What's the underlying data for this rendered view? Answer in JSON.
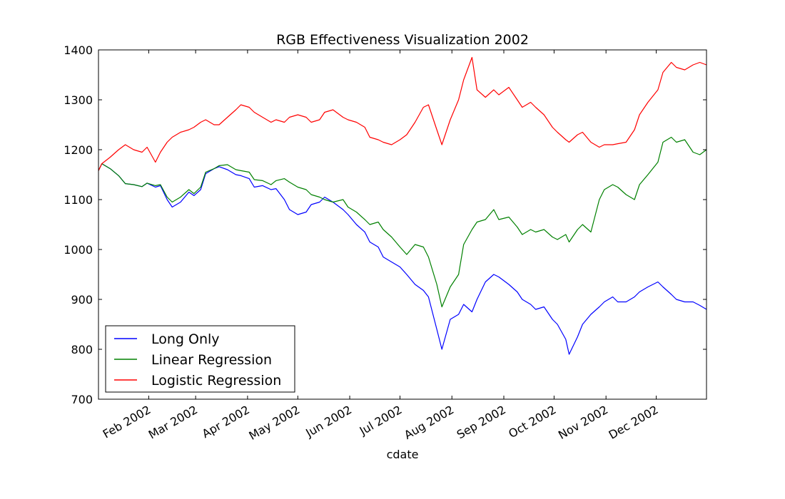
{
  "chart_data": {
    "type": "line",
    "title": "RGB Effectiveness Visualization 2002",
    "xlabel": "cdate",
    "ylabel": "",
    "x_range": [
      "2002-01-02",
      "2002-12-31"
    ],
    "ylim": [
      700,
      1400
    ],
    "yticks": [
      700,
      800,
      900,
      1000,
      1100,
      1200,
      1300,
      1400
    ],
    "xticks": [
      {
        "date": "2002-02-01",
        "label": "Feb 2002"
      },
      {
        "date": "2002-03-01",
        "label": "Mar 2002"
      },
      {
        "date": "2002-04-01",
        "label": "Apr 2002"
      },
      {
        "date": "2002-05-01",
        "label": "May 2002"
      },
      {
        "date": "2002-06-01",
        "label": "Jun 2002"
      },
      {
        "date": "2002-07-01",
        "label": "Jul 2002"
      },
      {
        "date": "2002-08-01",
        "label": "Aug 2002"
      },
      {
        "date": "2002-09-01",
        "label": "Sep 2002"
      },
      {
        "date": "2002-10-01",
        "label": "Oct 2002"
      },
      {
        "date": "2002-11-01",
        "label": "Nov 2002"
      },
      {
        "date": "2002-12-01",
        "label": "Dec 2002"
      }
    ],
    "grid": false,
    "legend_position": "lower-left",
    "series": [
      {
        "name": "Long Only",
        "color": "#0000ff",
        "points": [
          [
            "2002-01-02",
            1158
          ],
          [
            "2002-01-04",
            1172
          ],
          [
            "2002-01-09",
            1162
          ],
          [
            "2002-01-14",
            1148
          ],
          [
            "2002-01-18",
            1132
          ],
          [
            "2002-01-23",
            1130
          ],
          [
            "2002-01-28",
            1126
          ],
          [
            "2002-01-31",
            1133
          ],
          [
            "2002-02-05",
            1125
          ],
          [
            "2002-02-08",
            1128
          ],
          [
            "2002-02-12",
            1100
          ],
          [
            "2002-02-15",
            1085
          ],
          [
            "2002-02-20",
            1095
          ],
          [
            "2002-02-25",
            1115
          ],
          [
            "2002-02-28",
            1108
          ],
          [
            "2002-03-04",
            1120
          ],
          [
            "2002-03-07",
            1152
          ],
          [
            "2002-03-12",
            1162
          ],
          [
            "2002-03-15",
            1166
          ],
          [
            "2002-03-20",
            1160
          ],
          [
            "2002-03-25",
            1150
          ],
          [
            "2002-03-28",
            1148
          ],
          [
            "2002-04-02",
            1142
          ],
          [
            "2002-04-05",
            1125
          ],
          [
            "2002-04-10",
            1128
          ],
          [
            "2002-04-15",
            1120
          ],
          [
            "2002-04-18",
            1122
          ],
          [
            "2002-04-23",
            1100
          ],
          [
            "2002-04-26",
            1080
          ],
          [
            "2002-05-01",
            1070
          ],
          [
            "2002-05-06",
            1075
          ],
          [
            "2002-05-09",
            1090
          ],
          [
            "2002-05-14",
            1095
          ],
          [
            "2002-05-17",
            1105
          ],
          [
            "2002-05-22",
            1095
          ],
          [
            "2002-05-28",
            1080
          ],
          [
            "2002-05-31",
            1070
          ],
          [
            "2002-06-05",
            1050
          ],
          [
            "2002-06-10",
            1035
          ],
          [
            "2002-06-13",
            1015
          ],
          [
            "2002-06-18",
            1005
          ],
          [
            "2002-06-21",
            985
          ],
          [
            "2002-06-26",
            975
          ],
          [
            "2002-07-01",
            965
          ],
          [
            "2002-07-05",
            950
          ],
          [
            "2002-07-10",
            930
          ],
          [
            "2002-07-15",
            918
          ],
          [
            "2002-07-18",
            905
          ],
          [
            "2002-07-23",
            840
          ],
          [
            "2002-07-26",
            800
          ],
          [
            "2002-07-31",
            860
          ],
          [
            "2002-08-05",
            870
          ],
          [
            "2002-08-08",
            890
          ],
          [
            "2002-08-13",
            875
          ],
          [
            "2002-08-16",
            900
          ],
          [
            "2002-08-21",
            935
          ],
          [
            "2002-08-26",
            950
          ],
          [
            "2002-08-29",
            945
          ],
          [
            "2002-09-04",
            930
          ],
          [
            "2002-09-09",
            915
          ],
          [
            "2002-09-12",
            900
          ],
          [
            "2002-09-17",
            890
          ],
          [
            "2002-09-20",
            880
          ],
          [
            "2002-09-25",
            885
          ],
          [
            "2002-09-30",
            860
          ],
          [
            "2002-10-03",
            850
          ],
          [
            "2002-10-08",
            820
          ],
          [
            "2002-10-10",
            790
          ],
          [
            "2002-10-15",
            825
          ],
          [
            "2002-10-18",
            850
          ],
          [
            "2002-10-23",
            870
          ],
          [
            "2002-10-28",
            885
          ],
          [
            "2002-10-31",
            895
          ],
          [
            "2002-11-05",
            905
          ],
          [
            "2002-11-08",
            895
          ],
          [
            "2002-11-13",
            895
          ],
          [
            "2002-11-18",
            905
          ],
          [
            "2002-11-21",
            915
          ],
          [
            "2002-11-26",
            925
          ],
          [
            "2002-12-02",
            935
          ],
          [
            "2002-12-05",
            925
          ],
          [
            "2002-12-10",
            910
          ],
          [
            "2002-12-13",
            900
          ],
          [
            "2002-12-18",
            895
          ],
          [
            "2002-12-23",
            895
          ],
          [
            "2002-12-27",
            888
          ],
          [
            "2002-12-31",
            880
          ]
        ]
      },
      {
        "name": "Linear Regression",
        "color": "#008000",
        "points": [
          [
            "2002-01-02",
            1158
          ],
          [
            "2002-01-04",
            1172
          ],
          [
            "2002-01-09",
            1162
          ],
          [
            "2002-01-14",
            1148
          ],
          [
            "2002-01-18",
            1132
          ],
          [
            "2002-01-23",
            1130
          ],
          [
            "2002-01-28",
            1126
          ],
          [
            "2002-01-31",
            1133
          ],
          [
            "2002-02-05",
            1128
          ],
          [
            "2002-02-08",
            1130
          ],
          [
            "2002-02-12",
            1105
          ],
          [
            "2002-02-15",
            1095
          ],
          [
            "2002-02-20",
            1105
          ],
          [
            "2002-02-25",
            1120
          ],
          [
            "2002-02-28",
            1112
          ],
          [
            "2002-03-04",
            1125
          ],
          [
            "2002-03-07",
            1155
          ],
          [
            "2002-03-12",
            1162
          ],
          [
            "2002-03-15",
            1168
          ],
          [
            "2002-03-20",
            1170
          ],
          [
            "2002-03-25",
            1160
          ],
          [
            "2002-03-28",
            1158
          ],
          [
            "2002-04-02",
            1155
          ],
          [
            "2002-04-05",
            1140
          ],
          [
            "2002-04-10",
            1138
          ],
          [
            "2002-04-15",
            1130
          ],
          [
            "2002-04-18",
            1138
          ],
          [
            "2002-04-23",
            1142
          ],
          [
            "2002-04-26",
            1135
          ],
          [
            "2002-05-01",
            1125
          ],
          [
            "2002-05-06",
            1120
          ],
          [
            "2002-05-09",
            1110
          ],
          [
            "2002-05-14",
            1105
          ],
          [
            "2002-05-17",
            1100
          ],
          [
            "2002-05-22",
            1095
          ],
          [
            "2002-05-28",
            1100
          ],
          [
            "2002-05-31",
            1085
          ],
          [
            "2002-06-05",
            1075
          ],
          [
            "2002-06-10",
            1060
          ],
          [
            "2002-06-13",
            1050
          ],
          [
            "2002-06-18",
            1055
          ],
          [
            "2002-06-21",
            1040
          ],
          [
            "2002-06-26",
            1025
          ],
          [
            "2002-07-01",
            1005
          ],
          [
            "2002-07-05",
            990
          ],
          [
            "2002-07-10",
            1010
          ],
          [
            "2002-07-15",
            1005
          ],
          [
            "2002-07-18",
            985
          ],
          [
            "2002-07-23",
            930
          ],
          [
            "2002-07-26",
            885
          ],
          [
            "2002-07-31",
            925
          ],
          [
            "2002-08-05",
            950
          ],
          [
            "2002-08-08",
            1010
          ],
          [
            "2002-08-13",
            1040
          ],
          [
            "2002-08-16",
            1055
          ],
          [
            "2002-08-21",
            1060
          ],
          [
            "2002-08-26",
            1080
          ],
          [
            "2002-08-29",
            1060
          ],
          [
            "2002-09-04",
            1065
          ],
          [
            "2002-09-09",
            1045
          ],
          [
            "2002-09-12",
            1030
          ],
          [
            "2002-09-17",
            1040
          ],
          [
            "2002-09-20",
            1035
          ],
          [
            "2002-09-25",
            1040
          ],
          [
            "2002-09-30",
            1025
          ],
          [
            "2002-10-03",
            1020
          ],
          [
            "2002-10-08",
            1030
          ],
          [
            "2002-10-10",
            1015
          ],
          [
            "2002-10-15",
            1040
          ],
          [
            "2002-10-18",
            1050
          ],
          [
            "2002-10-23",
            1035
          ],
          [
            "2002-10-28",
            1100
          ],
          [
            "2002-10-31",
            1120
          ],
          [
            "2002-11-05",
            1130
          ],
          [
            "2002-11-08",
            1125
          ],
          [
            "2002-11-13",
            1110
          ],
          [
            "2002-11-18",
            1100
          ],
          [
            "2002-11-21",
            1130
          ],
          [
            "2002-11-26",
            1150
          ],
          [
            "2002-12-02",
            1175
          ],
          [
            "2002-12-05",
            1215
          ],
          [
            "2002-12-10",
            1225
          ],
          [
            "2002-12-13",
            1215
          ],
          [
            "2002-12-18",
            1220
          ],
          [
            "2002-12-23",
            1195
          ],
          [
            "2002-12-27",
            1190
          ],
          [
            "2002-12-31",
            1200
          ]
        ]
      },
      {
        "name": "Logistic Regression",
        "color": "#ff0000",
        "points": [
          [
            "2002-01-02",
            1158
          ],
          [
            "2002-01-04",
            1172
          ],
          [
            "2002-01-09",
            1185
          ],
          [
            "2002-01-14",
            1200
          ],
          [
            "2002-01-18",
            1210
          ],
          [
            "2002-01-23",
            1200
          ],
          [
            "2002-01-28",
            1195
          ],
          [
            "2002-01-31",
            1205
          ],
          [
            "2002-02-05",
            1175
          ],
          [
            "2002-02-08",
            1195
          ],
          [
            "2002-02-12",
            1215
          ],
          [
            "2002-02-15",
            1225
          ],
          [
            "2002-02-20",
            1235
          ],
          [
            "2002-02-25",
            1240
          ],
          [
            "2002-02-28",
            1245
          ],
          [
            "2002-03-04",
            1255
          ],
          [
            "2002-03-07",
            1260
          ],
          [
            "2002-03-12",
            1250
          ],
          [
            "2002-03-15",
            1250
          ],
          [
            "2002-03-20",
            1265
          ],
          [
            "2002-03-25",
            1280
          ],
          [
            "2002-03-28",
            1290
          ],
          [
            "2002-04-02",
            1285
          ],
          [
            "2002-04-05",
            1275
          ],
          [
            "2002-04-10",
            1265
          ],
          [
            "2002-04-15",
            1255
          ],
          [
            "2002-04-18",
            1260
          ],
          [
            "2002-04-23",
            1255
          ],
          [
            "2002-04-26",
            1265
          ],
          [
            "2002-05-01",
            1270
          ],
          [
            "2002-05-06",
            1265
          ],
          [
            "2002-05-09",
            1255
          ],
          [
            "2002-05-14",
            1260
          ],
          [
            "2002-05-17",
            1275
          ],
          [
            "2002-05-22",
            1280
          ],
          [
            "2002-05-28",
            1265
          ],
          [
            "2002-05-31",
            1260
          ],
          [
            "2002-06-05",
            1255
          ],
          [
            "2002-06-10",
            1245
          ],
          [
            "2002-06-13",
            1225
          ],
          [
            "2002-06-18",
            1220
          ],
          [
            "2002-06-21",
            1215
          ],
          [
            "2002-06-26",
            1210
          ],
          [
            "2002-07-01",
            1220
          ],
          [
            "2002-07-05",
            1230
          ],
          [
            "2002-07-10",
            1255
          ],
          [
            "2002-07-15",
            1285
          ],
          [
            "2002-07-18",
            1290
          ],
          [
            "2002-07-23",
            1240
          ],
          [
            "2002-07-26",
            1210
          ],
          [
            "2002-07-31",
            1260
          ],
          [
            "2002-08-05",
            1300
          ],
          [
            "2002-08-08",
            1340
          ],
          [
            "2002-08-13",
            1385
          ],
          [
            "2002-08-16",
            1320
          ],
          [
            "2002-08-21",
            1305
          ],
          [
            "2002-08-26",
            1320
          ],
          [
            "2002-08-29",
            1310
          ],
          [
            "2002-09-04",
            1325
          ],
          [
            "2002-09-09",
            1300
          ],
          [
            "2002-09-12",
            1285
          ],
          [
            "2002-09-17",
            1295
          ],
          [
            "2002-09-20",
            1285
          ],
          [
            "2002-09-25",
            1270
          ],
          [
            "2002-09-30",
            1245
          ],
          [
            "2002-10-03",
            1235
          ],
          [
            "2002-10-08",
            1220
          ],
          [
            "2002-10-10",
            1215
          ],
          [
            "2002-10-15",
            1230
          ],
          [
            "2002-10-18",
            1235
          ],
          [
            "2002-10-23",
            1215
          ],
          [
            "2002-10-28",
            1205
          ],
          [
            "2002-10-31",
            1210
          ],
          [
            "2002-11-05",
            1210
          ],
          [
            "2002-11-08",
            1212
          ],
          [
            "2002-11-13",
            1215
          ],
          [
            "2002-11-18",
            1240
          ],
          [
            "2002-11-21",
            1270
          ],
          [
            "2002-11-26",
            1295
          ],
          [
            "2002-12-02",
            1320
          ],
          [
            "2002-12-05",
            1355
          ],
          [
            "2002-12-10",
            1375
          ],
          [
            "2002-12-13",
            1365
          ],
          [
            "2002-12-18",
            1360
          ],
          [
            "2002-12-23",
            1370
          ],
          [
            "2002-12-27",
            1375
          ],
          [
            "2002-12-31",
            1370
          ]
        ]
      }
    ]
  }
}
